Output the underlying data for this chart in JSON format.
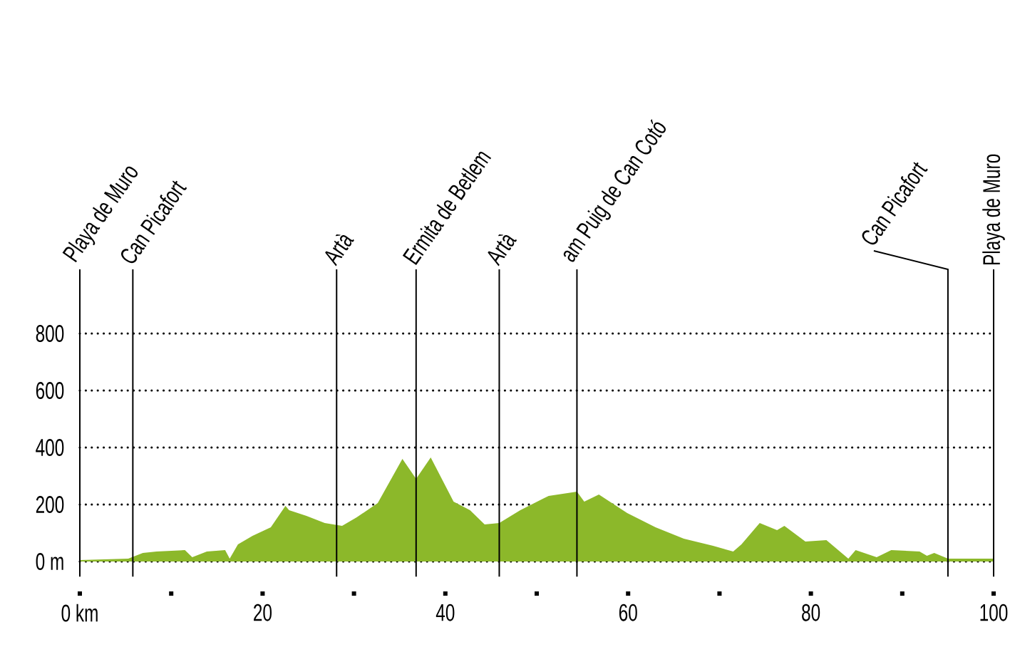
{
  "chart_data": {
    "type": "area",
    "color": "#8cb82a",
    "x": [
      0,
      5.3,
      6.9,
      8.4,
      11.5,
      12.3,
      13.9,
      15.9,
      16.4,
      17.3,
      18.9,
      20.9,
      22.5,
      22.9,
      24.8,
      26.8,
      28.7,
      30.3,
      32.6,
      35.3,
      36.8,
      38.4,
      40.9,
      42.7,
      44.3,
      45.9,
      48.2,
      51.3,
      54.4,
      55.2,
      56.8,
      59.9,
      63.0,
      66.1,
      69.3,
      71.5,
      72.4,
      74.4,
      76.3,
      77.1,
      79.4,
      81.7,
      84.1,
      84.9,
      87.2,
      88.8,
      91.9,
      92.7,
      93.5,
      95.0,
      100
    ],
    "values": [
      5,
      10,
      30,
      35,
      40,
      15,
      35,
      40,
      10,
      60,
      90,
      120,
      195,
      180,
      160,
      135,
      125,
      155,
      205,
      360,
      290,
      365,
      210,
      180,
      130,
      135,
      180,
      230,
      245,
      210,
      235,
      170,
      120,
      80,
      55,
      35,
      60,
      135,
      110,
      125,
      70,
      75,
      10,
      40,
      15,
      40,
      35,
      20,
      30,
      10,
      10
    ],
    "xlim": [
      0,
      100
    ],
    "xticks": [
      {
        "value": 0,
        "label": "0 km"
      },
      {
        "value": 10,
        "label": null
      },
      20,
      {
        "value": 30,
        "label": null
      },
      40,
      {
        "value": 50,
        "label": null
      },
      60,
      {
        "value": 70,
        "label": null
      },
      80,
      {
        "value": 90,
        "label": null
      },
      100
    ],
    "ylim": [
      -65,
      800
    ],
    "yticks": [
      {
        "value": 0,
        "label": "0 m"
      },
      200,
      400,
      600,
      800
    ],
    "grid": "y",
    "ref_lines": [
      {
        "axis": "x",
        "value": 0,
        "label": "Playa de Muro"
      },
      {
        "axis": "x",
        "value": 5.8,
        "label": "Can Picafort"
      },
      {
        "axis": "x",
        "value": 28.1,
        "label": "Artà"
      },
      {
        "axis": "x",
        "value": 36.8,
        "label": "Ermita de Betlem"
      },
      {
        "axis": "x",
        "value": 45.9,
        "label": "Artà"
      },
      {
        "axis": "x",
        "value": 54.4,
        "label": "am Puig de Can Cotó"
      },
      {
        "axis": "x",
        "value": 95.0,
        "label": "Can Picafort"
      },
      {
        "axis": "x",
        "value": 100,
        "label": "Playa de Muro"
      }
    ]
  }
}
